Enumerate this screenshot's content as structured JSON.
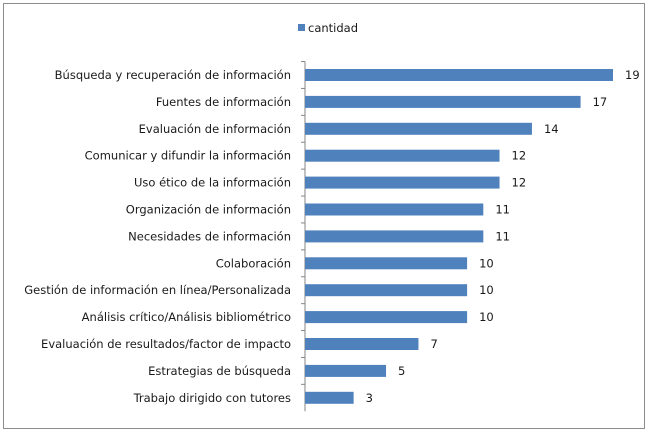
{
  "chart_data": {
    "type": "bar",
    "orientation": "horizontal",
    "categories": [
      "Búsqueda y recuperación de información",
      "Fuentes de información",
      "Evaluación de información",
      "Comunicar y difundir la información",
      "Uso ético de la información",
      "Organización de información",
      "Necesidades de información",
      "Colaboración",
      "Gestión de información en línea/Personalizada",
      "Análisis crítico/Análisis bibliométrico",
      "Evaluación de resultados/factor de impacto",
      "Estrategias de búsqueda",
      "Trabajo dirigido con tutores"
    ],
    "series": [
      {
        "name": "cantidad",
        "color": "#4f81bd",
        "values": [
          19,
          17,
          14,
          12,
          12,
          11,
          11,
          10,
          10,
          10,
          7,
          5,
          3
        ],
        "value_labels": [
          "19",
          "17",
          "14",
          "12",
          "12",
          "11",
          "11",
          "10",
          "10",
          "10",
          "7",
          "5",
          "3"
        ]
      }
    ],
    "title": "",
    "xlabel": "",
    "ylabel": "",
    "xlim": [
      0,
      19
    ],
    "grid": false,
    "legend": "top-center",
    "data_labels": true
  }
}
